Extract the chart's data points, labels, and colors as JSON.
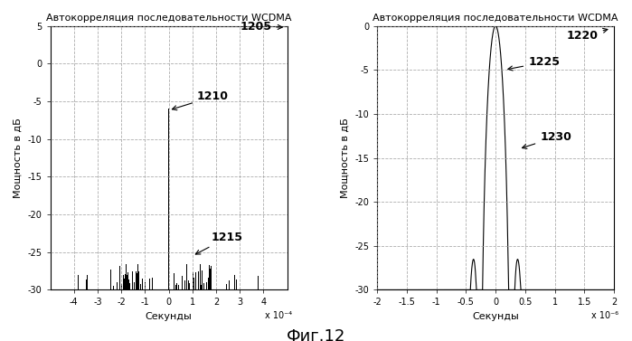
{
  "title_left": "Автокорреляция последовательности WCDMA",
  "title_right": "Автокорреляция последовательности WCDMA",
  "label_1205": "1205",
  "label_1210": "1210",
  "label_1215": "1215",
  "label_1220": "1220",
  "label_1225": "1225",
  "label_1230": "1230",
  "ylabel": "Мощность в дБ",
  "xlabel": "Секунды",
  "fig_label": "Фиг.12",
  "left_xscale": "x 10⁻⁴",
  "right_xscale": "x 10⁻⁶",
  "line_color": "#000000",
  "grid_color": "#888888"
}
